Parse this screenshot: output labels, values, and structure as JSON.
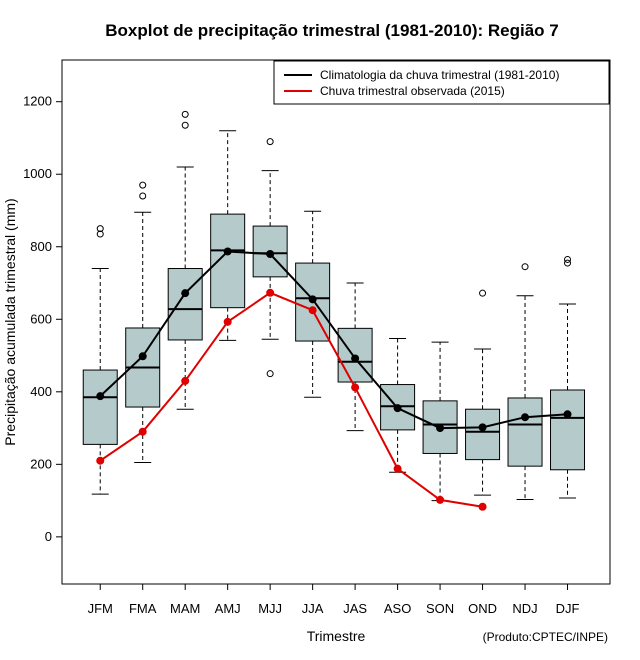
{
  "chart_data": {
    "type": "boxplot",
    "title": "Boxplot de precipitação trimestral (1981-2010): Região 7",
    "xlabel": "Trimestre",
    "ylabel": "Precipitação acumulada trimestral (mm)",
    "credit": "(Produto:CPTEC/INPE)",
    "ylim": [
      -130,
      1315
    ],
    "yticks": [
      0,
      200,
      400,
      600,
      800,
      1000,
      1200
    ],
    "categories": [
      "JFM",
      "FMA",
      "MAM",
      "AMJ",
      "MJJ",
      "JJA",
      "JAS",
      "ASO",
      "SON",
      "OND",
      "NDJ",
      "DJF"
    ],
    "boxes": [
      {
        "whisker_low": 118,
        "q1": 255,
        "median": 385,
        "q3": 460,
        "whisker_high": 740,
        "outliers": [
          835,
          850
        ]
      },
      {
        "whisker_low": 205,
        "q1": 358,
        "median": 467,
        "q3": 576,
        "whisker_high": 895,
        "outliers": [
          940,
          970
        ]
      },
      {
        "whisker_low": 352,
        "q1": 543,
        "median": 628,
        "q3": 740,
        "whisker_high": 1020,
        "outliers": [
          1135,
          1165
        ]
      },
      {
        "whisker_low": 542,
        "q1": 632,
        "median": 790,
        "q3": 890,
        "whisker_high": 1120,
        "outliers": []
      },
      {
        "whisker_low": 545,
        "q1": 717,
        "median": 782,
        "q3": 857,
        "whisker_high": 1010,
        "outliers": [
          450,
          1090
        ]
      },
      {
        "whisker_low": 385,
        "q1": 540,
        "median": 658,
        "q3": 755,
        "whisker_high": 898,
        "outliers": []
      },
      {
        "whisker_low": 293,
        "q1": 427,
        "median": 483,
        "q3": 575,
        "whisker_high": 700,
        "outliers": []
      },
      {
        "whisker_low": 178,
        "q1": 295,
        "median": 360,
        "q3": 420,
        "whisker_high": 547,
        "outliers": []
      },
      {
        "whisker_low": 100,
        "q1": 230,
        "median": 310,
        "q3": 375,
        "whisker_high": 537,
        "outliers": []
      },
      {
        "whisker_low": 115,
        "q1": 213,
        "median": 290,
        "q3": 352,
        "whisker_high": 518,
        "outliers": [
          672
        ]
      },
      {
        "whisker_low": 103,
        "q1": 195,
        "median": 310,
        "q3": 383,
        "whisker_high": 665,
        "outliers": [
          745
        ]
      },
      {
        "whisker_low": 107,
        "q1": 185,
        "median": 328,
        "q3": 405,
        "whisker_high": 642,
        "outliers": [
          755,
          765
        ]
      }
    ],
    "series": [
      {
        "name": "Climatologia da chuva trimestral (1981-2010)",
        "color": "#000000",
        "values": [
          388,
          498,
          672,
          787,
          780,
          655,
          492,
          355,
          300,
          302,
          330,
          338
        ]
      },
      {
        "name": "Chuva trimestral observada (2015)",
        "color": "#e00000",
        "values": [
          210,
          290,
          430,
          593,
          673,
          625,
          412,
          188,
          102,
          83,
          null,
          null
        ]
      }
    ],
    "box_color": "#b5cbcb",
    "legend_position": "top-right",
    "grid": false
  }
}
